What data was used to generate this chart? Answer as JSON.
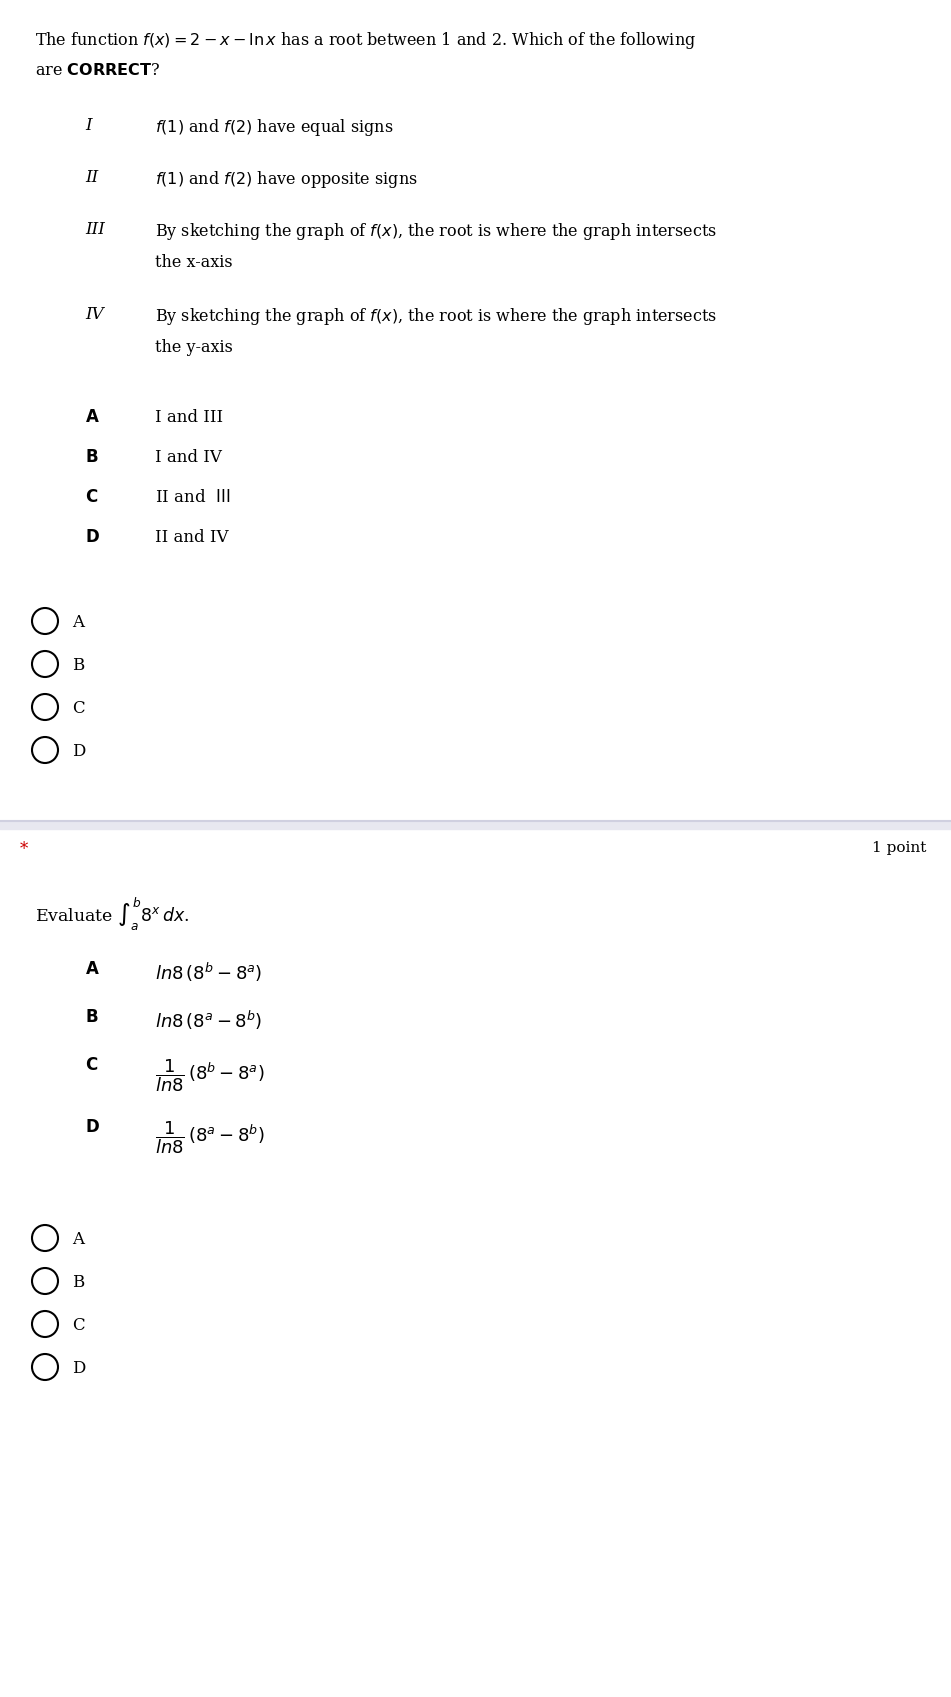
{
  "bg_color": "#ffffff",
  "separator_color": "#d0d0e0",
  "q1": {
    "question_line1": "The function $f(x)=2-x-\\ln x$ has a root between 1 and 2. Which of the following",
    "question_line2": "are $\\mathbf{CORRECT}$?",
    "options": [
      {
        "label": "I",
        "text_parts": [
          "$f(1)$ and $f(2)$ have equal signs"
        ]
      },
      {
        "label": "II",
        "text_parts": [
          "$f(1)$ and $f(2)$ have opposite signs"
        ]
      },
      {
        "label": "III",
        "text_parts": [
          "By sketching the graph of $f(x)$, the root is where the graph intersects",
          "the x-axis"
        ]
      },
      {
        "label": "IV",
        "text_parts": [
          "By sketching the graph of $f(x)$, the root is where the graph intersects",
          "the y-axis"
        ]
      }
    ],
    "answers": [
      {
        "label": "A",
        "text": "I and III"
      },
      {
        "label": "B",
        "text": "I and IV"
      },
      {
        "label": "C",
        "text": "II and  III"
      },
      {
        "label": "D",
        "text": "II and IV"
      }
    ],
    "radio_labels": [
      "A",
      "B",
      "C",
      "D"
    ]
  },
  "q2": {
    "star": "*",
    "points": "1 point",
    "question": "Evaluate $\\int_{a}^{b}8^x\\,dx$.",
    "answers": [
      {
        "label": "A",
        "text": "$\\ln 8\\,(8^b - 8^a)$"
      },
      {
        "label": "B",
        "text": "$\\ln 8\\,(8^a - 8^b)$"
      },
      {
        "label": "C",
        "text": "$\\dfrac{1}{\\ln 8}\\,(8^b - 8^a)$"
      },
      {
        "label": "D",
        "text": "$\\dfrac{1}{\\ln 8}\\,(8^a - 8^b)$"
      }
    ],
    "radio_labels": [
      "A",
      "B",
      "C",
      "D"
    ]
  }
}
